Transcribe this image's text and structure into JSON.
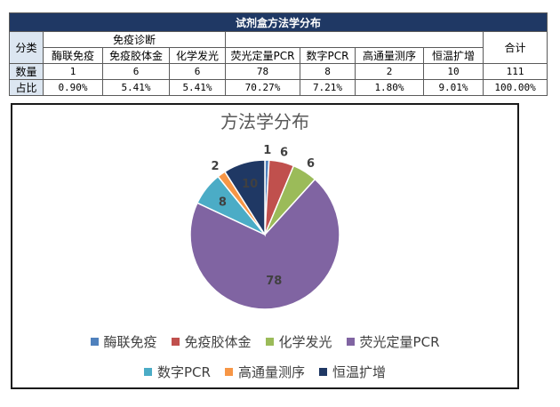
{
  "table": {
    "title": "试剂盒方法学分布",
    "h_category": "分类",
    "h_group": "免疫诊断",
    "h_total": "合计",
    "columns": [
      "酶联免疫",
      "免疫胶体金",
      "化学发光",
      "荧光定量PCR",
      "数字PCR",
      "高通量测序",
      "恒温扩增"
    ],
    "row_count_label": "数量",
    "row_ratio_label": "占比",
    "counts": [
      "1",
      "6",
      "6",
      "78",
      "8",
      "2",
      "10"
    ],
    "count_total": "111",
    "ratios": [
      "0.90%",
      "5.41%",
      "5.41%",
      "70.27%",
      "7.21%",
      "1.80%",
      "9.01%"
    ],
    "ratio_total": "100.00%"
  },
  "chart_data": {
    "type": "pie",
    "title": "方法学分布",
    "categories": [
      "酶联免疫",
      "免疫胶体金",
      "化学发光",
      "荧光定量PCR",
      "数字PCR",
      "高通量测序",
      "恒温扩增"
    ],
    "values": [
      1,
      6,
      6,
      78,
      8,
      2,
      10
    ],
    "colors": [
      "#4f81bd",
      "#c0504d",
      "#9bbb59",
      "#8064a2",
      "#4bacc6",
      "#f79646",
      "#1f3864"
    ],
    "data_labels": [
      "1",
      "6",
      "6",
      "78",
      "8",
      "2",
      "10"
    ],
    "legend_position": "bottom"
  }
}
